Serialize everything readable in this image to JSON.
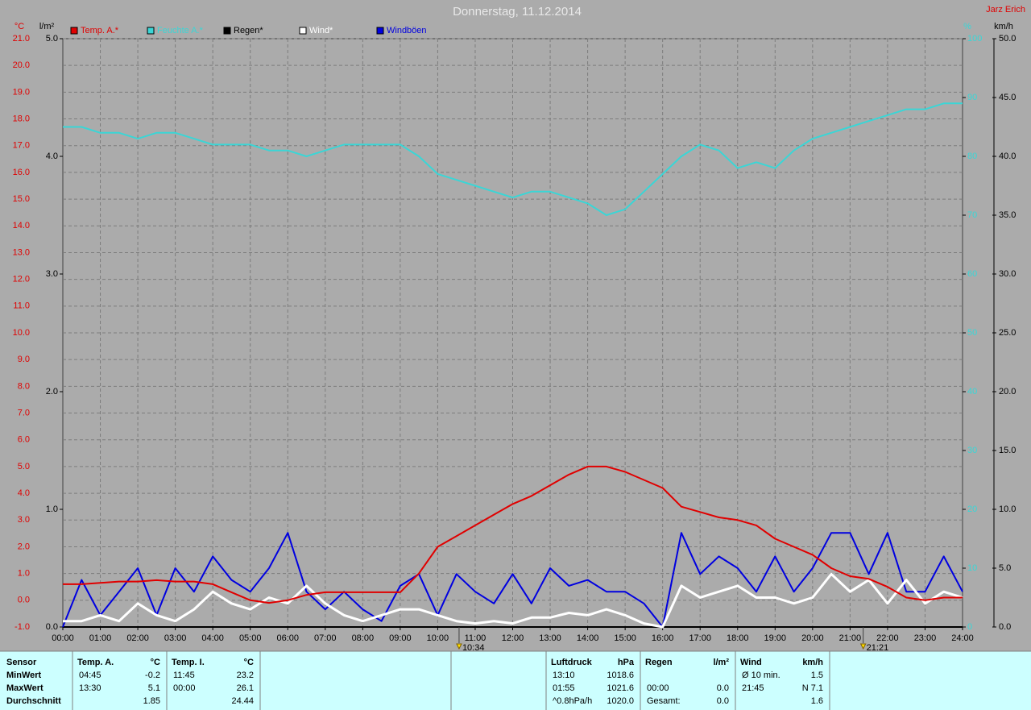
{
  "chart_data": {
    "type": "line",
    "title": "Donnerstag, 11.12.2014",
    "author": "Jarz Erich",
    "ylabel": "°C",
    "y2label": "l/m²",
    "y3label": "%",
    "y4label": "km/h",
    "ylim": [
      -1,
      21
    ],
    "yticks": [
      {
        "value": -1,
        "label": "-1.0"
      },
      {
        "value": 0,
        "label": "0.0"
      },
      {
        "value": 1,
        "label": "1.0"
      },
      {
        "value": 2,
        "label": "2.0"
      },
      {
        "value": 3,
        "label": "3.0"
      },
      {
        "value": 4,
        "label": "4.0"
      },
      {
        "value": 5,
        "label": "5.0"
      },
      {
        "value": 6,
        "label": "6.0"
      },
      {
        "value": 7,
        "label": "7.0"
      },
      {
        "value": 8,
        "label": "8.0"
      },
      {
        "value": 9,
        "label": "9.0"
      },
      {
        "value": 10,
        "label": "10.0"
      },
      {
        "value": 11,
        "label": "11.0"
      },
      {
        "value": 12,
        "label": "12.0"
      },
      {
        "value": 13,
        "label": "13.0"
      },
      {
        "value": 14,
        "label": "14.0"
      },
      {
        "value": 15,
        "label": "15.0"
      },
      {
        "value": 16,
        "label": "16.0"
      },
      {
        "value": 17,
        "label": "17.0"
      },
      {
        "value": 18,
        "label": "18.0"
      },
      {
        "value": 19,
        "label": "19.0"
      },
      {
        "value": 20,
        "label": "20.0"
      },
      {
        "value": 21,
        "label": "21.0"
      }
    ],
    "y2lim": [
      0,
      5
    ],
    "y2ticks": [
      {
        "value": 0,
        "label": "0.0"
      },
      {
        "value": 1,
        "label": "1.0"
      },
      {
        "value": 2,
        "label": "2.0"
      },
      {
        "value": 3,
        "label": "3.0"
      },
      {
        "value": 4,
        "label": "4.0"
      },
      {
        "value": 5,
        "label": "5.0"
      }
    ],
    "y3lim": [
      0,
      100
    ],
    "y3ticks": [
      0,
      10,
      20,
      30,
      40,
      50,
      60,
      70,
      80,
      90,
      100
    ],
    "y4lim": [
      0,
      50
    ],
    "y4ticks": [
      {
        "value": 0,
        "label": "0.0"
      },
      {
        "value": 5,
        "label": "5.0"
      },
      {
        "value": 10,
        "label": "10.0"
      },
      {
        "value": 15,
        "label": "15.0"
      },
      {
        "value": 20,
        "label": "20.0"
      },
      {
        "value": 25,
        "label": "25.0"
      },
      {
        "value": 30,
        "label": "30.0"
      },
      {
        "value": 35,
        "label": "35.0"
      },
      {
        "value": 40,
        "label": "40.0"
      },
      {
        "value": 45,
        "label": "45.0"
      },
      {
        "value": 50,
        "label": "50.0"
      }
    ],
    "xlim": [
      0,
      24
    ],
    "xticks": [
      {
        "value": 0,
        "label": "00:00"
      },
      {
        "value": 1,
        "label": "01:00"
      },
      {
        "value": 2,
        "label": "02:00"
      },
      {
        "value": 3,
        "label": "03:00"
      },
      {
        "value": 4,
        "label": "04:00"
      },
      {
        "value": 5,
        "label": "05:00"
      },
      {
        "value": 6,
        "label": "06:00"
      },
      {
        "value": 7,
        "label": "07:00"
      },
      {
        "value": 8,
        "label": "08:00"
      },
      {
        "value": 9,
        "label": "09:00"
      },
      {
        "value": 10,
        "label": "10:00"
      },
      {
        "value": 11,
        "label": "11:00"
      },
      {
        "value": 12,
        "label": "12:00"
      },
      {
        "value": 13,
        "label": "13:00"
      },
      {
        "value": 14,
        "label": "14:00"
      },
      {
        "value": 15,
        "label": "15:00"
      },
      {
        "value": 16,
        "label": "16:00"
      },
      {
        "value": 17,
        "label": "17:00"
      },
      {
        "value": 18,
        "label": "18:00"
      },
      {
        "value": 19,
        "label": "19:00"
      },
      {
        "value": 20,
        "label": "20:00"
      },
      {
        "value": 21,
        "label": "21:00"
      },
      {
        "value": 22,
        "label": "22:00"
      },
      {
        "value": 23,
        "label": "23:00"
      },
      {
        "value": 24,
        "label": "24:00"
      }
    ],
    "grid": true,
    "annotations": [
      {
        "text": "10:34",
        "x": 10.57
      },
      {
        "text": "21:21",
        "x": 21.35
      }
    ],
    "x": [
      0,
      0.5,
      1,
      1.5,
      2,
      2.5,
      3,
      3.5,
      4,
      4.5,
      5,
      5.5,
      6,
      6.5,
      7,
      7.5,
      8,
      8.5,
      9,
      9.5,
      10,
      10.5,
      11,
      11.5,
      12,
      12.5,
      13,
      13.5,
      14,
      14.5,
      15,
      15.5,
      16,
      16.5,
      17,
      17.5,
      18,
      18.5,
      19,
      19.5,
      20,
      20.5,
      21,
      21.5,
      22,
      22.5,
      23,
      23.5,
      24
    ],
    "series": [
      {
        "name": "Temp. A.*",
        "color": "#e00000",
        "axis": "y",
        "values": [
          0.6,
          0.6,
          0.65,
          0.7,
          0.7,
          0.75,
          0.7,
          0.7,
          0.6,
          0.3,
          0.0,
          -0.1,
          0.0,
          0.2,
          0.3,
          0.3,
          0.3,
          0.3,
          0.3,
          1.0,
          2.0,
          2.4,
          2.8,
          3.2,
          3.6,
          3.9,
          4.3,
          4.7,
          5.0,
          5.0,
          4.8,
          4.5,
          4.2,
          3.5,
          3.3,
          3.1,
          3.0,
          2.8,
          2.3,
          2.0,
          1.7,
          1.2,
          0.9,
          0.8,
          0.5,
          0.1,
          0.0,
          0.1,
          0.1
        ]
      },
      {
        "name": "Feuchte A.*",
        "color": "#3ad6d6",
        "axis": "y3",
        "values": [
          85,
          85,
          84,
          84,
          83,
          84,
          84,
          83,
          82,
          82,
          82,
          81,
          81,
          80,
          81,
          82,
          82,
          82,
          82,
          80,
          77,
          76,
          75,
          74,
          73,
          74,
          74,
          73,
          72,
          70,
          71,
          74,
          77,
          80,
          82,
          81,
          78,
          79,
          78,
          81,
          83,
          84,
          85,
          86,
          87,
          88,
          88,
          89,
          89
        ]
      },
      {
        "name": "Regen*",
        "color": "#000000",
        "axis": "y2",
        "values": [
          0,
          0,
          0,
          0,
          0,
          0,
          0,
          0,
          0,
          0,
          0,
          0,
          0,
          0,
          0,
          0,
          0,
          0,
          0,
          0,
          0,
          0,
          0,
          0,
          0,
          0,
          0,
          0,
          0,
          0,
          0,
          0,
          0,
          0,
          0,
          0,
          0,
          0,
          0,
          0,
          0,
          0,
          0,
          0,
          0,
          0,
          0,
          0,
          0
        ]
      },
      {
        "name": "Wind*",
        "color": "#ffffff",
        "axis": "y4",
        "values": [
          0.5,
          0.5,
          1,
          0.5,
          2,
          1,
          0.5,
          1.5,
          3,
          2,
          1.5,
          2.5,
          2,
          3.5,
          2,
          1,
          0.5,
          1,
          1.5,
          1.5,
          1,
          0.5,
          0.3,
          0.5,
          0.3,
          0.8,
          0.8,
          1.2,
          1,
          1.5,
          1,
          0.3,
          0,
          3.5,
          2.5,
          3,
          3.5,
          2.5,
          2.5,
          2,
          2.5,
          4.5,
          3,
          4,
          2,
          4,
          2,
          3,
          2.5
        ]
      },
      {
        "name": "Windböen",
        "color": "#0000e0",
        "axis": "y4",
        "values": [
          0,
          4,
          1,
          3,
          5,
          1,
          5,
          3,
          6,
          4,
          3,
          5,
          8,
          3,
          1.5,
          3,
          1.5,
          0.5,
          3.5,
          4.5,
          1,
          4.5,
          3,
          2,
          4.5,
          2,
          5,
          3.5,
          4,
          3,
          3,
          2,
          0,
          8,
          4.5,
          6,
          5,
          3,
          6,
          3,
          5,
          8,
          8,
          4.5,
          8,
          3,
          3,
          6,
          3
        ]
      }
    ]
  },
  "table": {
    "labels": [
      "Sensor",
      "MinWert",
      "MaxWert",
      "Durchschnitt"
    ],
    "blocks": [
      {
        "header": [
          "Temp. A.",
          "°C"
        ],
        "rows": [
          [
            "04:45",
            "-0.2"
          ],
          [
            "13:30",
            "5.1"
          ],
          [
            "1.85"
          ]
        ]
      },
      {
        "header": [
          "Temp. I.",
          "°C"
        ],
        "rows": [
          [
            "11:45",
            "23.2"
          ],
          [
            "00:00",
            "26.1"
          ],
          [
            "24.44"
          ]
        ]
      },
      {
        "header": [
          "Luftdruck",
          "hPa"
        ],
        "rows": [
          [
            "13:10",
            "1018.6"
          ],
          [
            "01:55",
            "1021.6"
          ],
          [
            "^0.8hPa/h",
            "1020.0"
          ]
        ]
      },
      {
        "header": [
          "Regen",
          "l/m²"
        ],
        "rows": [
          null,
          [
            "00:00",
            "0.0"
          ],
          [
            "Gesamt:",
            "0.0"
          ]
        ]
      },
      {
        "header": [
          "Wind",
          "km/h"
        ],
        "rows": [
          [
            "Ø 10 min.",
            "1.5"
          ],
          [
            "21:45",
            "N 7.1"
          ],
          [
            "1.6"
          ]
        ]
      }
    ]
  }
}
